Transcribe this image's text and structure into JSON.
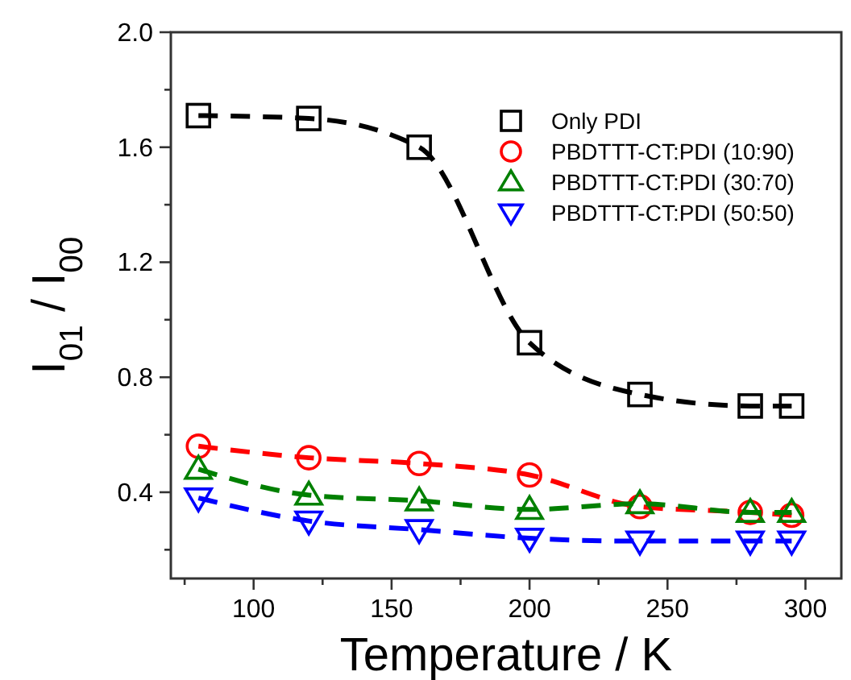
{
  "chart_data": {
    "type": "line",
    "xlabel": "Temperature / K",
    "ylabel": "I$_{01}$ / I$_{00}$",
    "x": [
      80,
      120,
      160,
      200,
      240,
      280,
      295
    ],
    "xlim": [
      70,
      313
    ],
    "ylim": [
      0.1,
      2.0
    ],
    "xticks": [
      {
        "value": 75,
        "label": null
      },
      100,
      {
        "value": 125,
        "label": null
      },
      150,
      {
        "value": 175,
        "label": null
      },
      200,
      {
        "value": 225,
        "label": null
      },
      250,
      {
        "value": 275,
        "label": null
      },
      300
    ],
    "yticks": [
      {
        "value": 0.2,
        "label": null
      },
      0.4,
      {
        "value": 0.6,
        "label": null
      },
      0.8,
      {
        "value": 1.0,
        "label": null
      },
      1.2,
      {
        "value": 1.4,
        "label": null
      },
      1.6,
      {
        "value": 1.8,
        "label": null
      },
      {
        "value": 2.0,
        "label": "2.0"
      }
    ],
    "grid": false,
    "legend": "top right",
    "line_style": "dashed",
    "series": [
      {
        "name": "Only PDI",
        "color": "#000000",
        "marker": "square",
        "values": [
          1.71,
          1.7,
          1.6,
          0.92,
          0.74,
          0.7,
          0.7
        ]
      },
      {
        "name": "PBDTTT-CT:PDI (10:90)",
        "color": "#ff0000",
        "marker": "circle",
        "values": [
          0.56,
          0.52,
          0.5,
          0.46,
          0.35,
          0.33,
          0.32
        ]
      },
      {
        "name": "PBDTTT-CT:PDI (30:70)",
        "color": "#008000",
        "marker": "triangle",
        "values": [
          0.48,
          0.39,
          0.37,
          0.34,
          0.36,
          0.33,
          0.33
        ]
      },
      {
        "name": "PBDTTT-CT:PDI (50:50)",
        "color": "#0000ff",
        "marker": "triangle-down",
        "values": [
          0.38,
          0.3,
          0.27,
          0.24,
          0.23,
          0.23,
          0.23
        ]
      }
    ]
  }
}
